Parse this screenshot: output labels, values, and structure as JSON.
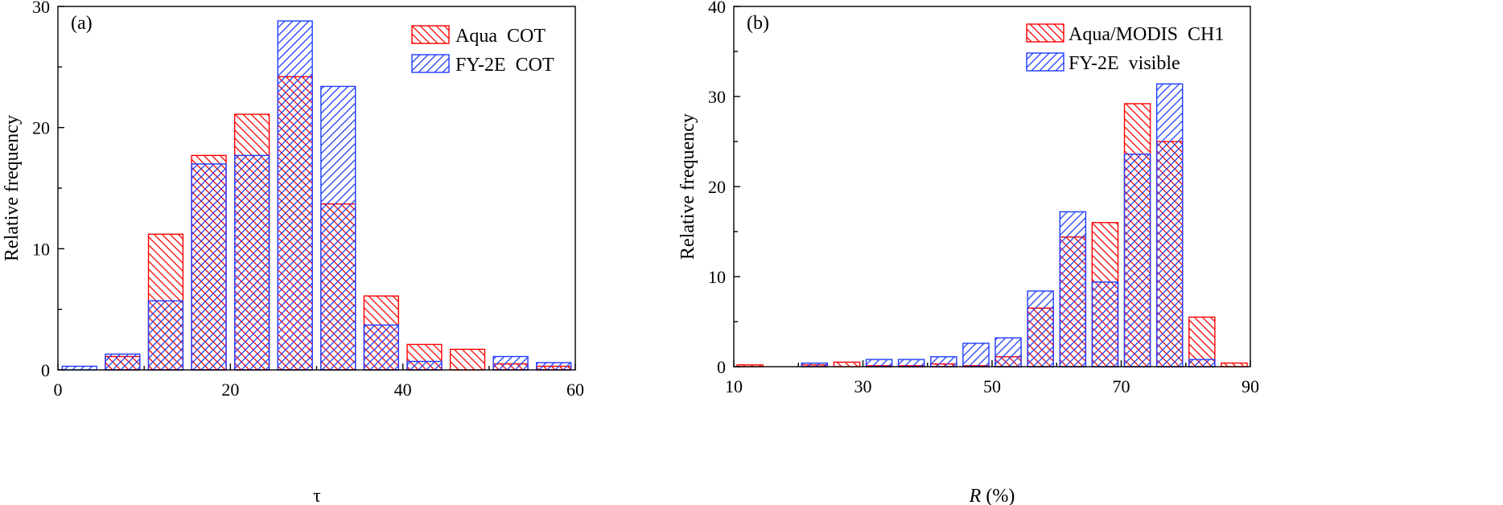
{
  "colors": {
    "aqua": "#ff0000",
    "fy2e": "#1e3cff"
  },
  "chart_data": [
    {
      "type": "bar",
      "panel_label": "(a)",
      "xlabel": "τ",
      "ylabel": "Relative frequency",
      "xlim": [
        0,
        60
      ],
      "ylim": [
        0,
        30
      ],
      "xticks": [
        0,
        20,
        40,
        60
      ],
      "yticks": [
        0,
        10,
        20,
        30
      ],
      "bin_width": 5,
      "x": [
        2.5,
        7.5,
        12.5,
        17.5,
        22.5,
        27.5,
        32.5,
        37.5,
        42.5,
        47.5,
        52.5,
        57.5
      ],
      "legend": {
        "position": "top-right"
      },
      "series": [
        {
          "name": "Aqua  COT",
          "color": "#ff0000",
          "hatch": "backslash",
          "values": [
            0.0,
            1.1,
            11.2,
            17.7,
            21.1,
            24.2,
            13.7,
            6.1,
            2.1,
            1.7,
            0.5,
            0.3
          ]
        },
        {
          "name": "FY-2E  COT",
          "color": "#1e3cff",
          "hatch": "slash",
          "values": [
            0.3,
            1.3,
            5.7,
            17.0,
            17.7,
            28.8,
            23.4,
            3.7,
            0.7,
            0.0,
            1.1,
            0.6
          ]
        }
      ]
    },
    {
      "type": "bar",
      "panel_label": "(b)",
      "xlabel": "R",
      "xlabel_unit": "(%)",
      "ylabel": "Relative frequency",
      "xlim": [
        10,
        90
      ],
      "ylim": [
        0,
        40
      ],
      "xticks": [
        10,
        30,
        50,
        70,
        90
      ],
      "yticks": [
        0,
        10,
        20,
        30,
        40
      ],
      "bin_width": 5,
      "x": [
        12.5,
        17.5,
        22.5,
        27.5,
        32.5,
        37.5,
        42.5,
        47.5,
        52.5,
        57.5,
        62.5,
        67.5,
        72.5,
        77.5,
        82.5,
        87.5
      ],
      "legend": {
        "position": "top-right"
      },
      "series": [
        {
          "name": "Aqua/MODIS  CH1",
          "color": "#ff0000",
          "hatch": "backslash",
          "values": [
            0.2,
            0.0,
            0.2,
            0.5,
            0.1,
            0.1,
            0.3,
            0.1,
            1.1,
            6.5,
            14.4,
            16.0,
            29.2,
            25.0,
            5.5,
            0.4
          ]
        },
        {
          "name": "FY-2E  visible",
          "color": "#1e3cff",
          "hatch": "slash",
          "values": [
            0.0,
            0.0,
            0.4,
            0.0,
            0.8,
            0.8,
            1.1,
            2.6,
            3.2,
            8.4,
            17.2,
            9.4,
            23.6,
            31.4,
            0.8,
            0.0
          ]
        }
      ]
    }
  ]
}
